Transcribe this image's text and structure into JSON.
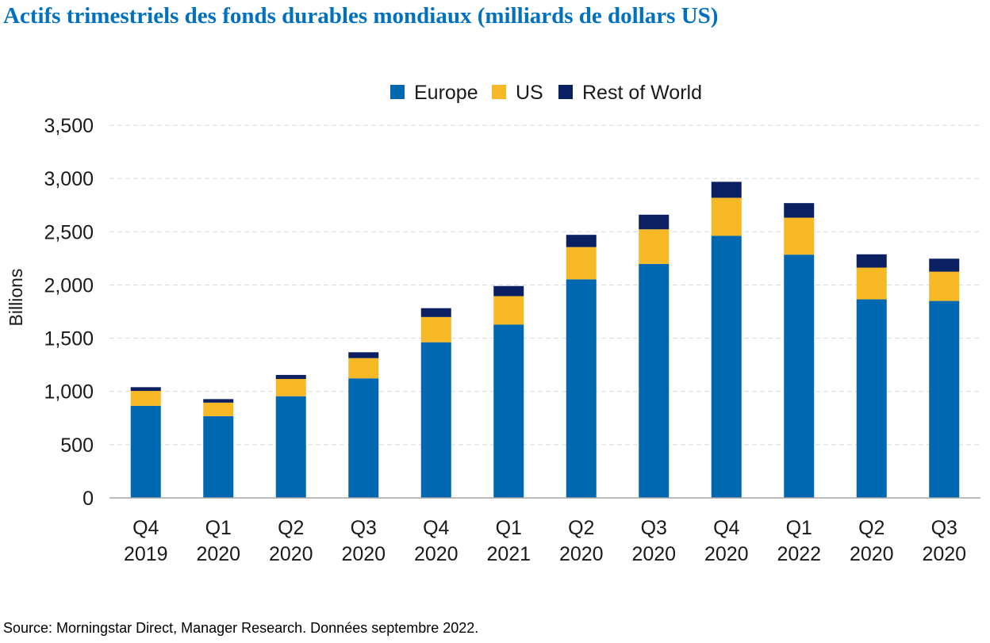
{
  "page": {
    "title": "Actifs trimestriels des fonds durables mondiaux (milliards de dollars US)",
    "source": "Source: Morningstar Direct, Manager Research. Données septembre 2022."
  },
  "chart_data": {
    "type": "bar",
    "stacked": true,
    "categories": [
      [
        "Q4",
        "2019"
      ],
      [
        "Q1",
        "2020"
      ],
      [
        "Q2",
        "2020"
      ],
      [
        "Q3",
        "2020"
      ],
      [
        "Q4",
        "2020"
      ],
      [
        "Q1",
        "2021"
      ],
      [
        "Q2",
        "2020"
      ],
      [
        "Q3",
        "2020"
      ],
      [
        "Q4",
        "2020"
      ],
      [
        "Q1",
        "2022"
      ],
      [
        "Q2",
        "2020"
      ],
      [
        "Q3",
        "2020"
      ]
    ],
    "series": [
      {
        "name": "Europe",
        "color": "#0067b1",
        "values": [
          865,
          768,
          955,
          1123,
          1462,
          1628,
          2053,
          2198,
          2462,
          2285,
          1865,
          1850
        ]
      },
      {
        "name": "US",
        "color": "#f7b825",
        "values": [
          140,
          127,
          162,
          190,
          237,
          267,
          303,
          325,
          357,
          347,
          298,
          275
        ]
      },
      {
        "name": "Rest of World",
        "color": "#0b2060",
        "values": [
          35,
          33,
          38,
          55,
          83,
          95,
          115,
          137,
          150,
          137,
          125,
          122
        ]
      }
    ],
    "ylabel": "Billions",
    "xlabel": "",
    "ylim": [
      0,
      3500
    ],
    "yticks": [
      0,
      500,
      1000,
      1500,
      2000,
      2500,
      3000,
      3500
    ],
    "ytick_labels": [
      "0",
      "500",
      "1,000",
      "1,500",
      "2,000",
      "2,500",
      "3,000",
      "3,500"
    ],
    "grid": true,
    "legend_position": "top-center"
  }
}
